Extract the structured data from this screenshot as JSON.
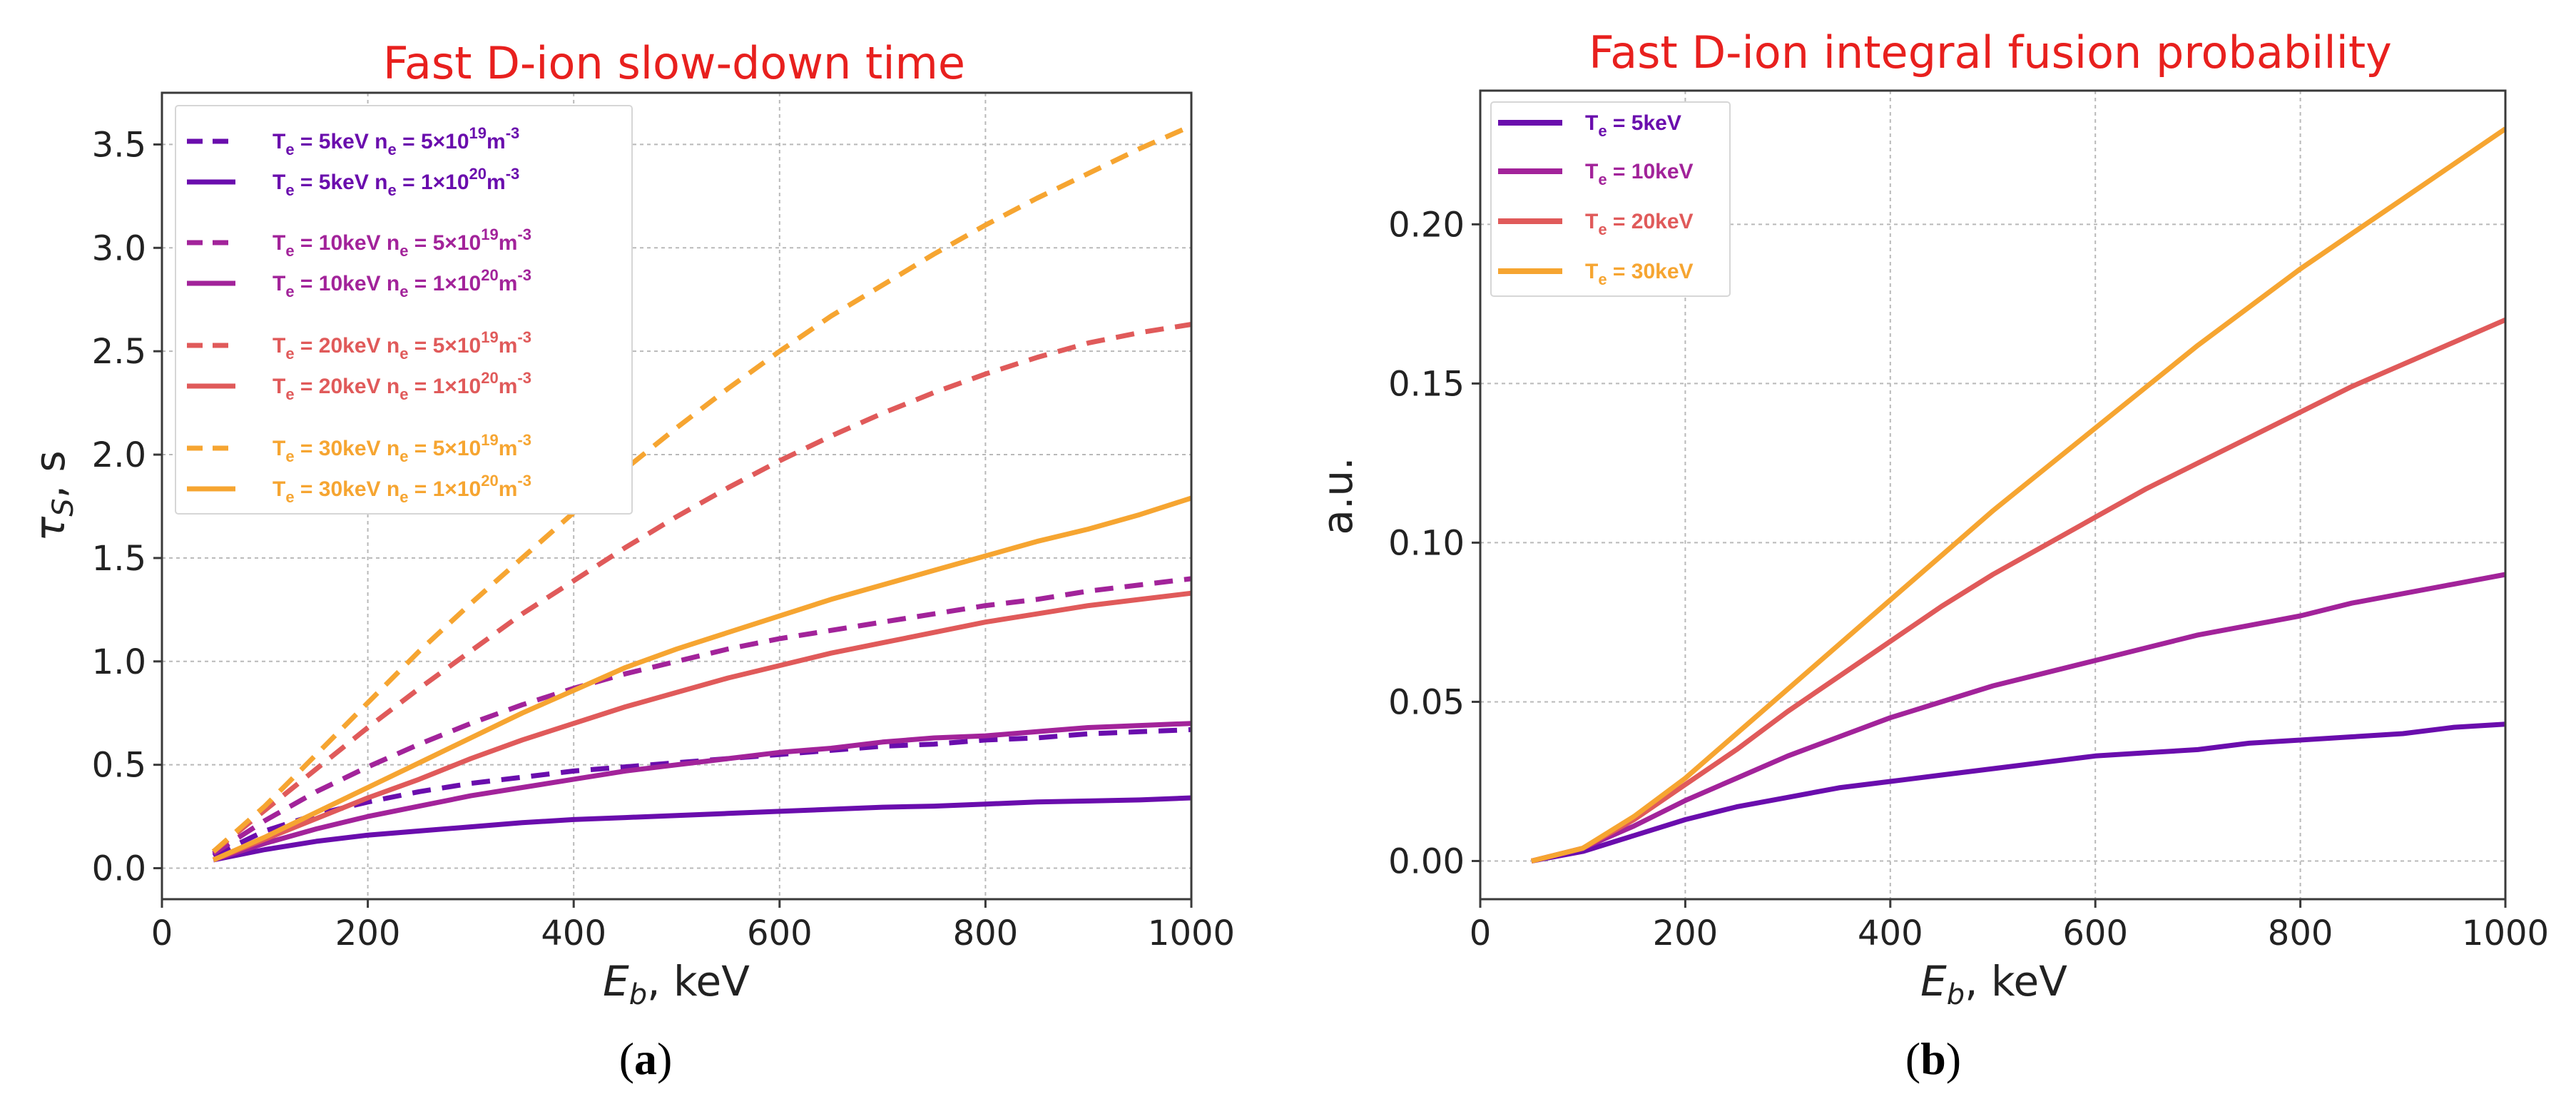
{
  "chart_data": [
    {
      "id": "a",
      "type": "line",
      "title": "Fast D-ion slow-down time",
      "xlabel": "E_b, keV",
      "ylabel": "τ_S, s",
      "panel_label": "(a)",
      "xlim": [
        0,
        1000
      ],
      "ylim": [
        -0.15,
        3.75
      ],
      "xticks": [
        0,
        200,
        400,
        600,
        800,
        1000
      ],
      "yticks": [
        0.0,
        0.5,
        1.0,
        1.5,
        2.0,
        2.5,
        3.0,
        3.5
      ],
      "ytick_labels": [
        "0.0",
        "0.5",
        "1.0",
        "1.5",
        "2.0",
        "2.5",
        "3.0",
        "3.5"
      ],
      "grid": true,
      "legend_position": "top-left",
      "x": [
        50,
        100,
        150,
        200,
        250,
        300,
        350,
        400,
        450,
        500,
        550,
        600,
        650,
        700,
        750,
        800,
        850,
        900,
        950,
        1000
      ],
      "series": [
        {
          "te": "5keV",
          "ne_base": "5×10",
          "ne_exp": "19",
          "color": "#6a0dad",
          "dash": true,
          "values": [
            0.06,
            0.18,
            0.26,
            0.32,
            0.37,
            0.41,
            0.44,
            0.47,
            0.49,
            0.51,
            0.53,
            0.55,
            0.57,
            0.59,
            0.6,
            0.62,
            0.63,
            0.65,
            0.66,
            0.67
          ]
        },
        {
          "te": "5keV",
          "ne_base": "1×10",
          "ne_exp": "20",
          "color": "#6a0dad",
          "dash": false,
          "values": [
            0.04,
            0.09,
            0.13,
            0.16,
            0.18,
            0.2,
            0.22,
            0.235,
            0.245,
            0.255,
            0.265,
            0.275,
            0.285,
            0.295,
            0.3,
            0.31,
            0.32,
            0.325,
            0.33,
            0.34
          ]
        },
        {
          "te": "10keV",
          "ne_base": "5×10",
          "ne_exp": "19",
          "color": "#a2239a",
          "dash": true,
          "values": [
            0.07,
            0.23,
            0.37,
            0.49,
            0.6,
            0.7,
            0.79,
            0.87,
            0.94,
            1.0,
            1.06,
            1.11,
            1.15,
            1.19,
            1.23,
            1.27,
            1.3,
            1.34,
            1.37,
            1.4
          ]
        },
        {
          "te": "10keV",
          "ne_base": "1×10",
          "ne_exp": "20",
          "color": "#a2239a",
          "dash": false,
          "values": [
            0.04,
            0.12,
            0.19,
            0.25,
            0.3,
            0.35,
            0.39,
            0.43,
            0.47,
            0.5,
            0.53,
            0.56,
            0.58,
            0.61,
            0.63,
            0.64,
            0.66,
            0.68,
            0.69,
            0.7
          ]
        },
        {
          "te": "20keV",
          "ne_base": "5×10",
          "ne_exp": "19",
          "color": "#e05a5a",
          "dash": true,
          "values": [
            0.08,
            0.28,
            0.48,
            0.68,
            0.87,
            1.05,
            1.23,
            1.39,
            1.55,
            1.7,
            1.84,
            1.97,
            2.09,
            2.2,
            2.3,
            2.39,
            2.47,
            2.54,
            2.59,
            2.63
          ]
        },
        {
          "te": "20keV",
          "ne_base": "1×10",
          "ne_exp": "20",
          "color": "#e05a5a",
          "dash": false,
          "values": [
            0.04,
            0.14,
            0.24,
            0.34,
            0.43,
            0.53,
            0.62,
            0.7,
            0.78,
            0.85,
            0.92,
            0.98,
            1.04,
            1.09,
            1.14,
            1.19,
            1.23,
            1.27,
            1.3,
            1.33
          ]
        },
        {
          "te": "30keV",
          "ne_base": "5×10",
          "ne_exp": "19",
          "color": "#f6a531",
          "dash": true,
          "values": [
            0.08,
            0.3,
            0.55,
            0.8,
            1.05,
            1.28,
            1.5,
            1.72,
            1.93,
            2.13,
            2.32,
            2.5,
            2.67,
            2.82,
            2.97,
            3.11,
            3.24,
            3.36,
            3.48,
            3.59
          ]
        },
        {
          "te": "30keV",
          "ne_base": "1×10",
          "ne_exp": "20",
          "color": "#f6a531",
          "dash": false,
          "values": [
            0.04,
            0.15,
            0.27,
            0.39,
            0.51,
            0.63,
            0.75,
            0.86,
            0.97,
            1.06,
            1.14,
            1.22,
            1.3,
            1.37,
            1.44,
            1.51,
            1.58,
            1.64,
            1.71,
            1.79
          ]
        }
      ]
    },
    {
      "id": "b",
      "type": "line",
      "title": "Fast D-ion integral fusion probability",
      "xlabel": "E_b, keV",
      "ylabel": "a.u.",
      "panel_label": "(b)",
      "xlim": [
        0,
        1000
      ],
      "ylim": [
        -0.012,
        0.242
      ],
      "xticks": [
        0,
        200,
        400,
        600,
        800,
        1000
      ],
      "yticks": [
        0.0,
        0.05,
        0.1,
        0.15,
        0.2
      ],
      "ytick_labels": [
        "0.00",
        "0.05",
        "0.10",
        "0.15",
        "0.20"
      ],
      "grid": true,
      "legend_position": "top-left",
      "x": [
        50,
        100,
        150,
        200,
        250,
        300,
        350,
        400,
        450,
        500,
        550,
        600,
        650,
        700,
        750,
        800,
        850,
        900,
        950,
        1000
      ],
      "series": [
        {
          "te": "5keV",
          "color": "#6a0dad",
          "values": [
            0.0,
            0.003,
            0.008,
            0.013,
            0.017,
            0.02,
            0.023,
            0.025,
            0.027,
            0.029,
            0.031,
            0.033,
            0.034,
            0.035,
            0.037,
            0.038,
            0.039,
            0.04,
            0.042,
            0.043
          ]
        },
        {
          "te": "10keV",
          "color": "#a2239a",
          "values": [
            0.0,
            0.004,
            0.011,
            0.019,
            0.026,
            0.033,
            0.039,
            0.045,
            0.05,
            0.055,
            0.059,
            0.063,
            0.067,
            0.071,
            0.074,
            0.077,
            0.081,
            0.084,
            0.087,
            0.09
          ]
        },
        {
          "te": "20keV",
          "color": "#e05a5a",
          "values": [
            0.0,
            0.004,
            0.013,
            0.024,
            0.035,
            0.047,
            0.058,
            0.069,
            0.08,
            0.09,
            0.099,
            0.108,
            0.117,
            0.125,
            0.133,
            0.141,
            0.149,
            0.156,
            0.163,
            0.17
          ]
        },
        {
          "te": "30keV",
          "color": "#f6a531",
          "values": [
            0.0,
            0.004,
            0.014,
            0.026,
            0.04,
            0.054,
            0.068,
            0.082,
            0.096,
            0.11,
            0.123,
            0.136,
            0.149,
            0.162,
            0.174,
            0.186,
            0.197,
            0.208,
            0.219,
            0.23
          ]
        }
      ]
    }
  ]
}
